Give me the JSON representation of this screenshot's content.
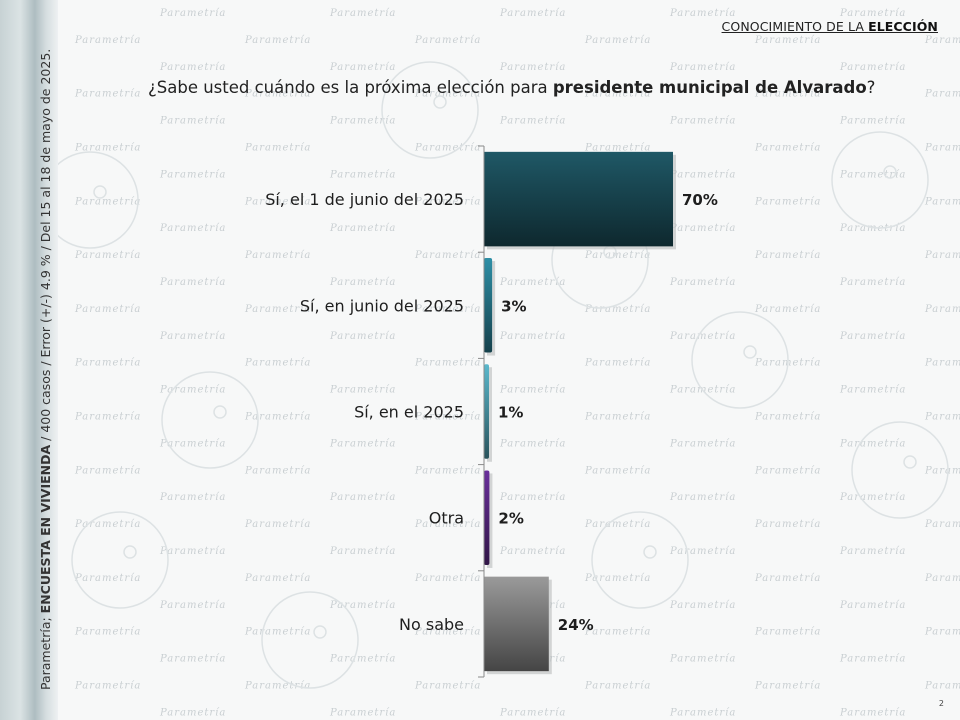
{
  "header": {
    "section_prefix": "CONOCIMIENTO DE LA ",
    "section_bold": "ELECCIÓN"
  },
  "question": {
    "prefix": "¿Sabe usted cuándo es la próxima elección para ",
    "bold": "presidente municipal de Alvarado",
    "suffix": "?"
  },
  "side_note": {
    "source": "Parametría; ",
    "survey": "ENCUESTA EN VIVIENDA",
    "details": " / 400 casos / Error (+/-) 4.9 % / Del 15 al 18 de mayo de 2025."
  },
  "watermark": {
    "text": "Parametría"
  },
  "page_number": "2",
  "chart_data": {
    "type": "bar",
    "orientation": "horizontal",
    "categories": [
      "Sí, el 1 de junio del 2025",
      "Sí, en junio del 2025",
      "Sí, en el 2025",
      "Otra",
      "No sabe"
    ],
    "values": [
      70,
      3,
      1,
      2,
      24
    ],
    "value_labels": [
      "70%",
      "3%",
      "1%",
      "2%",
      "24%"
    ],
    "unit": "%",
    "xlim": [
      0,
      100
    ],
    "bar_colors": [
      "#1f5866",
      "#2e8fa6",
      "#5ab8cc",
      "#6a2f9c",
      "#9a9a9a"
    ],
    "grid": false
  }
}
